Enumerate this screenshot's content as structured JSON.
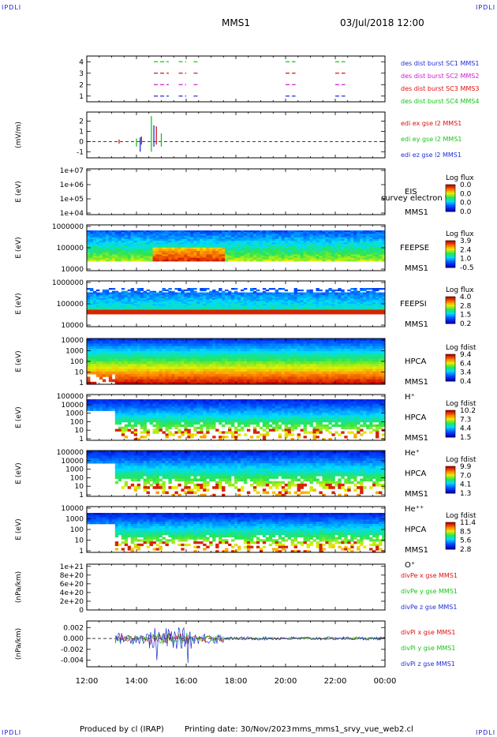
{
  "header": {
    "corner_tl": "IPDLI",
    "corner_tr": "IPDLI",
    "corner_bl": "IPDLI",
    "corner_br": "IPDLI",
    "spacecraft": "MMS1",
    "datetime": "03/Jul/2018 12:00"
  },
  "footer": {
    "produced_by": "Produced by cl (IRAP)",
    "printing_date": "Printing date: 30/Nov/2023",
    "filename": "mms_mms1_srvy_vue_web2.cl"
  },
  "colors": {
    "blue": "#1f2fd6",
    "green": "#17c417",
    "red": "#e01010",
    "magenta": "#d01cd0",
    "dark_blue": "#1a1a99"
  },
  "chart_data": {
    "type": "heatmap",
    "x_tick_labels": [
      "12:00",
      "14:00",
      "16:00",
      "18:00",
      "20:00",
      "22:00",
      "00:00"
    ],
    "x_range_hours": [
      12,
      24
    ],
    "panels": [
      {
        "id": "burst",
        "type": "scatter",
        "yticks": [
          "4",
          "3",
          "2",
          "1"
        ],
        "ylim": [
          0.5,
          4.5
        ],
        "series": [
          {
            "name": "des dist burst SC1 MMS1",
            "color": "#1f2fd6",
            "y": 1,
            "segments": [
              [
                14.7,
                15.3
              ],
              [
                15.7,
                16.0
              ],
              [
                16.3,
                16.5
              ],
              [
                20.0,
                20.4
              ],
              [
                22.0,
                22.4
              ]
            ]
          },
          {
            "name": "des dist burst SC2 MMS2",
            "color": "#d01cd0",
            "y": 2,
            "segments": [
              [
                14.7,
                15.3
              ],
              [
                15.7,
                16.0
              ],
              [
                16.3,
                16.5
              ],
              [
                20.0,
                20.4
              ],
              [
                22.0,
                22.4
              ]
            ]
          },
          {
            "name": "des dist burst SC3 MMS3",
            "color": "#e01010",
            "y": 3,
            "segments": [
              [
                14.7,
                15.3
              ],
              [
                15.7,
                16.0
              ],
              [
                16.3,
                16.5
              ],
              [
                20.0,
                20.4
              ],
              [
                22.0,
                22.4
              ]
            ]
          },
          {
            "name": "des dist burst SC4 MMS4",
            "color": "#17c417",
            "y": 4,
            "segments": [
              [
                14.7,
                15.3
              ],
              [
                15.7,
                16.0
              ],
              [
                16.3,
                16.5
              ],
              [
                20.0,
                20.4
              ],
              [
                22.0,
                22.4
              ]
            ]
          }
        ]
      },
      {
        "id": "edi",
        "type": "line",
        "ylabel": "(mV/m)",
        "yticks": [
          "2",
          "1",
          "0",
          "-1"
        ],
        "ylim": [
          -1.6,
          2.9
        ],
        "series": [
          {
            "name": "edi ex gse l2 MMS1",
            "color": "#e01010"
          },
          {
            "name": "edi ey gse l2 MMS1",
            "color": "#17c417"
          },
          {
            "name": "edi ez gse l2 MMS1",
            "color": "#1f2fd6"
          }
        ]
      },
      {
        "id": "eis",
        "type": "heatmap",
        "ylabel": "E (eV)",
        "yticks": [
          "1e+07",
          "1e+06",
          "1e+05",
          "1e+04"
        ],
        "instrument": [
          "EIS",
          "MMS1"
        ],
        "overlay_label": "survey electron to",
        "colorbar_title": "Log flux",
        "colorbar_ticks": [
          "0.0",
          "0.0",
          "0.0",
          "0.0"
        ]
      },
      {
        "id": "feepse",
        "type": "heatmap",
        "ylabel": "E (eV)",
        "yticks": [
          "1000000",
          "100000",
          "10000"
        ],
        "instrument": [
          "FEEPSE",
          "MMS1"
        ],
        "colorbar_title": "Log flux",
        "colorbar_ticks": [
          "3.9",
          "2.4",
          "1.0",
          "-0.5"
        ]
      },
      {
        "id": "feepsi",
        "type": "heatmap",
        "ylabel": "E (eV)",
        "yticks": [
          "1000000",
          "100000",
          "10000"
        ],
        "instrument": [
          "FEEPSI",
          "MMS1"
        ],
        "colorbar_title": "Log flux",
        "colorbar_ticks": [
          "4.0",
          "2.8",
          "1.5",
          "0.2"
        ]
      },
      {
        "id": "hpca_h",
        "type": "heatmap",
        "ylabel": "E (eV)",
        "yticks": [
          "10000",
          "1000",
          "100",
          "10",
          "1"
        ],
        "instrument": [
          "HPCA",
          "MMS1",
          "H⁺"
        ],
        "colorbar_title": "Log fdist",
        "colorbar_ticks": [
          "9.4",
          "6.4",
          "3.4",
          "0.4"
        ]
      },
      {
        "id": "hpca_he",
        "type": "heatmap",
        "ylabel": "E (eV)",
        "yticks": [
          "100000",
          "10000",
          "1000",
          "100",
          "10",
          "1"
        ],
        "instrument": [
          "HPCA",
          "MMS1",
          "He⁺"
        ],
        "colorbar_title": "Log fdist",
        "colorbar_ticks": [
          "10.2",
          "7.3",
          "4.4",
          "1.5"
        ]
      },
      {
        "id": "hpca_he2",
        "type": "heatmap",
        "ylabel": "E (eV)",
        "yticks": [
          "100000",
          "10000",
          "1000",
          "100",
          "10",
          "1"
        ],
        "instrument": [
          "HPCA",
          "MMS1",
          "He⁺⁺"
        ],
        "colorbar_title": "Log fdist",
        "colorbar_ticks": [
          "9.9",
          "7.0",
          "4.1",
          "1.3"
        ]
      },
      {
        "id": "hpca_o",
        "type": "heatmap",
        "ylabel": "E (eV)",
        "yticks": [
          "10000",
          "1000",
          "100",
          "10",
          "1"
        ],
        "instrument": [
          "HPCA",
          "MMS1",
          "O⁺"
        ],
        "colorbar_title": "Log fdist",
        "colorbar_ticks": [
          "11.4",
          "8.5",
          "5.6",
          "2.8"
        ]
      },
      {
        "id": "divpe",
        "type": "line",
        "ylabel": "(nPa/km)",
        "yticks": [
          "1e+21",
          "8e+20",
          "6e+20",
          "4e+20",
          "2e+20",
          "0"
        ],
        "ylim": [
          0,
          1.05e+21
        ],
        "series": [
          {
            "name": "divPe x gse MMS1",
            "color": "#e01010"
          },
          {
            "name": "divPe y gse MMS1",
            "color": "#17c417"
          },
          {
            "name": "divPe z gse MMS1",
            "color": "#1f2fd6"
          }
        ]
      },
      {
        "id": "divpi",
        "type": "line",
        "ylabel": "(nPa/km)",
        "yticks": [
          "0.002",
          "0.000",
          "-0.002",
          "-0.004"
        ],
        "ylim": [
          -0.0052,
          0.0032
        ],
        "series": [
          {
            "name": "divPi x gse MMS1",
            "color": "#e01010"
          },
          {
            "name": "divPi y gse MMS1",
            "color": "#17c417"
          },
          {
            "name": "divPi z gse MMS1",
            "color": "#1f2fd6"
          }
        ]
      }
    ]
  }
}
